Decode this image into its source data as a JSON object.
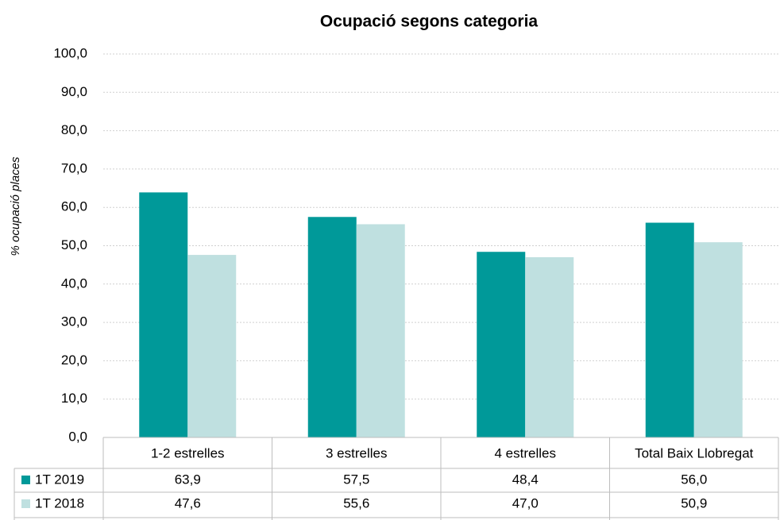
{
  "chart_data": {
    "type": "bar",
    "title": "Ocupació segons categoria",
    "y_label": "% ocupació places",
    "categories": [
      "1-2 estrelles",
      "3 estrelles",
      "4 estrelles",
      "Total Baix Llobregat"
    ],
    "series": [
      {
        "name": "1T 2019",
        "color": "#009999",
        "values": [
          63.9,
          57.5,
          48.4,
          56.0
        ],
        "value_labels": [
          "63,9",
          "57,5",
          "48,4",
          "56,0"
        ]
      },
      {
        "name": "1T 2018",
        "color": "#bfe0e0",
        "values": [
          47.6,
          55.6,
          47.0,
          50.9
        ],
        "value_labels": [
          "47,6",
          "55,6",
          "47,0",
          "50,9"
        ]
      }
    ],
    "ylim": [
      0,
      100
    ],
    "yticks": [
      {
        "value": 0,
        "label": "0,0"
      },
      {
        "value": 10,
        "label": "10,0"
      },
      {
        "value": 20,
        "label": "20,0"
      },
      {
        "value": 30,
        "label": "30,0"
      },
      {
        "value": 40,
        "label": "40,0"
      },
      {
        "value": 50,
        "label": "50,0"
      },
      {
        "value": 60,
        "label": "60,0"
      },
      {
        "value": 70,
        "label": "70,0"
      },
      {
        "value": 80,
        "label": "80,0"
      },
      {
        "value": 90,
        "label": "90,0"
      },
      {
        "value": 100,
        "label": "100,0"
      }
    ],
    "grid": true
  }
}
